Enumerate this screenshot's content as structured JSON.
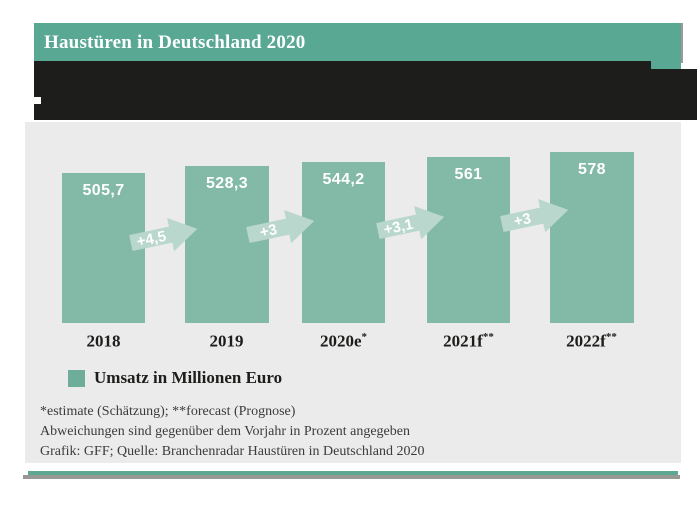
{
  "header": {
    "title": "Haustüren in Deutschland 2020"
  },
  "chart_data": {
    "type": "bar",
    "title": "Haustüren in Deutschland 2020",
    "categories": [
      "2018",
      "2019",
      "2020e*",
      "2021f**",
      "2022f**"
    ],
    "category_parts": [
      {
        "base": "2018",
        "sup": ""
      },
      {
        "base": "2019",
        "sup": ""
      },
      {
        "base": "2020e",
        "sup": "*"
      },
      {
        "base": "2021f",
        "sup": "**"
      },
      {
        "base": "2022f",
        "sup": "**"
      }
    ],
    "values": [
      505.7,
      528.3,
      544.2,
      561,
      578
    ],
    "value_labels": [
      "505,7",
      "528,3",
      "544,2",
      "561",
      "578"
    ],
    "deltas": [
      "+4,5",
      "+3",
      "+3,1",
      "+3"
    ],
    "delta_unit": "percent vs. previous year",
    "ylabel": "Umsatz in Millionen Euro",
    "ylim": [
      0,
      580
    ],
    "grid": false,
    "legend_position": "bottom-left"
  },
  "legend": {
    "label": "Umsatz in Millionen Euro"
  },
  "footnotes": {
    "line1": "*estimate (Schätzung); **forecast (Prognose)",
    "line2": "Abweichungen sind gegenüber dem Vorjahr in Prozent angegeben",
    "line3": "Grafik: GFF; Quelle: Branchenradar Haustüren in Deutschland 2020"
  },
  "colors": {
    "header_teal": "#58a893",
    "bar_teal": "#83b9a7",
    "legend_teal": "#6fad9b",
    "arrow_teal": "#b9d7cc",
    "panel_gray": "#ebebeb",
    "redaction_black": "#1d1d1b",
    "shadow_gray": "#9a9a96",
    "strip_teal": "#5ea893",
    "strip_gray": "#989894",
    "text_dark": "#1d1d1b",
    "footnote_gray": "#3b3b3a"
  }
}
